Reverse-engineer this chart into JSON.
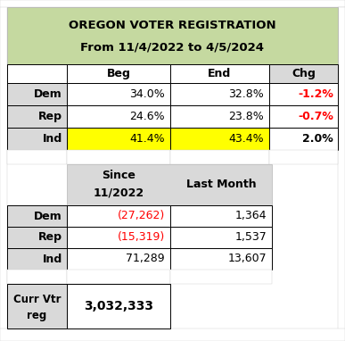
{
  "title_line1": "OREGON VOTER REGISTRATION",
  "title_line2": "From 11/4/2022 to 4/5/2024",
  "title_bg": "#c5d9a0",
  "header_row": [
    "",
    "Beg",
    "End",
    "Chg"
  ],
  "table1_rows": [
    {
      "label": "Dem",
      "beg": "34.0%",
      "end": "32.8%",
      "chg": "-1.2%",
      "chg_color": "#ff0000",
      "beg_bg": "#ffffff",
      "end_bg": "#ffffff"
    },
    {
      "label": "Rep",
      "beg": "24.6%",
      "end": "23.8%",
      "chg": "-0.7%",
      "chg_color": "#ff0000",
      "beg_bg": "#ffffff",
      "end_bg": "#ffffff"
    },
    {
      "label": "Ind",
      "beg": "41.4%",
      "end": "43.4%",
      "chg": "2.0%",
      "chg_color": "#000000",
      "beg_bg": "#ffff00",
      "end_bg": "#ffff00"
    }
  ],
  "subheader_line1": "Since",
  "subheader_line2": "11/2022",
  "subheader_line3": "Last Month",
  "table2_rows": [
    {
      "label": "Dem",
      "since": "(27,262)",
      "last": "1,364",
      "since_color": "#ff0000",
      "last_color": "#000000"
    },
    {
      "label": "Rep",
      "since": "(15,319)",
      "last": "1,537",
      "since_color": "#ff0000",
      "last_color": "#000000"
    },
    {
      "label": "Ind",
      "since": "71,289",
      "last": "13,607",
      "since_color": "#000000",
      "last_color": "#000000"
    }
  ],
  "footer_label_line1": "Curr Vtr",
  "footer_label_line2": "reg",
  "footer_value": "3,032,333",
  "label_bg": "#d9d9d9",
  "row_bg": "#ffffff",
  "subheader_bg": "#d9d9d9",
  "fig_bg": "#ffffff",
  "grid_color": "#000000",
  "chg_col_bg": "#d9d9d9"
}
